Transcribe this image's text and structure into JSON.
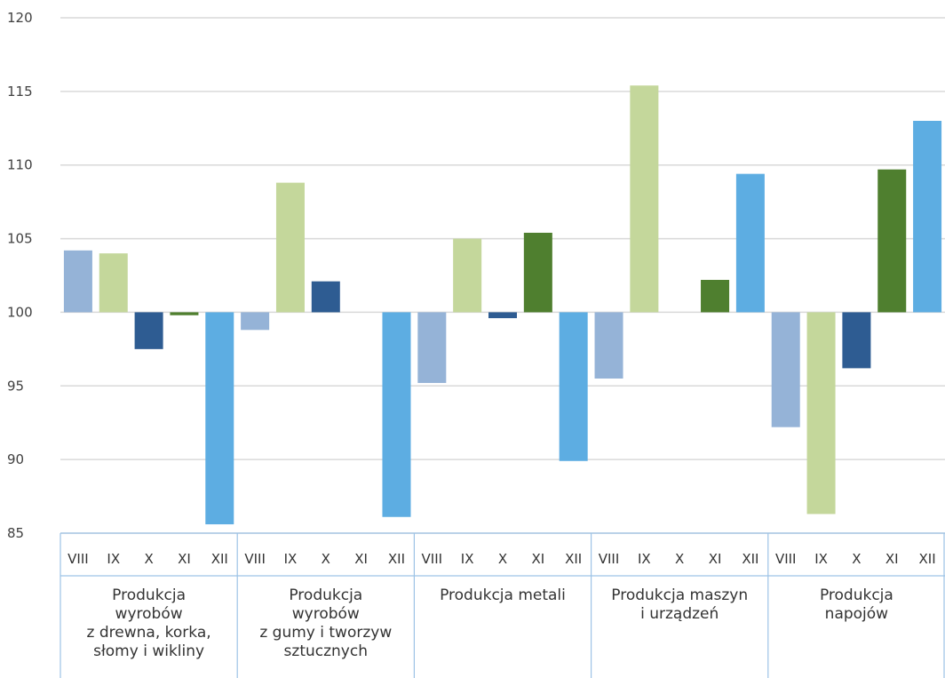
{
  "chart_data": {
    "type": "bar",
    "title": "",
    "xlabel": "",
    "ylabel": "",
    "ylim": [
      85,
      120
    ],
    "baseline": 100,
    "yticks": [
      85,
      90,
      95,
      100,
      105,
      110,
      115,
      120
    ],
    "grid": true,
    "months": [
      "VIII",
      "IX",
      "X",
      "XI",
      "XII"
    ],
    "colors": {
      "VIII": "#95b3d7",
      "IX": "#c4d79b",
      "X": "#2e5c92",
      "XI": "#4f7f2f",
      "XII": "#5dade2"
    },
    "groups": [
      {
        "label": "Produkcja\nwyrobów\nz drewna, korka,\nsłomy i wikliny",
        "values": [
          104.2,
          104.0,
          97.5,
          99.8,
          85.6
        ]
      },
      {
        "label": "Produkcja\nwyrobów\nz gumy i tworzyw\nsztucznych",
        "values": [
          98.8,
          108.8,
          102.1,
          100.0,
          86.1
        ]
      },
      {
        "label": "Produkcja metali",
        "values": [
          95.2,
          105.0,
          99.6,
          105.4,
          89.9
        ]
      },
      {
        "label": "Produkcja maszyn\ni urządzeń",
        "values": [
          95.5,
          115.4,
          100.0,
          102.2,
          109.4
        ]
      },
      {
        "label": "Produkcja\nnapojów",
        "values": [
          92.2,
          86.3,
          96.2,
          109.7,
          113.0
        ]
      }
    ]
  }
}
